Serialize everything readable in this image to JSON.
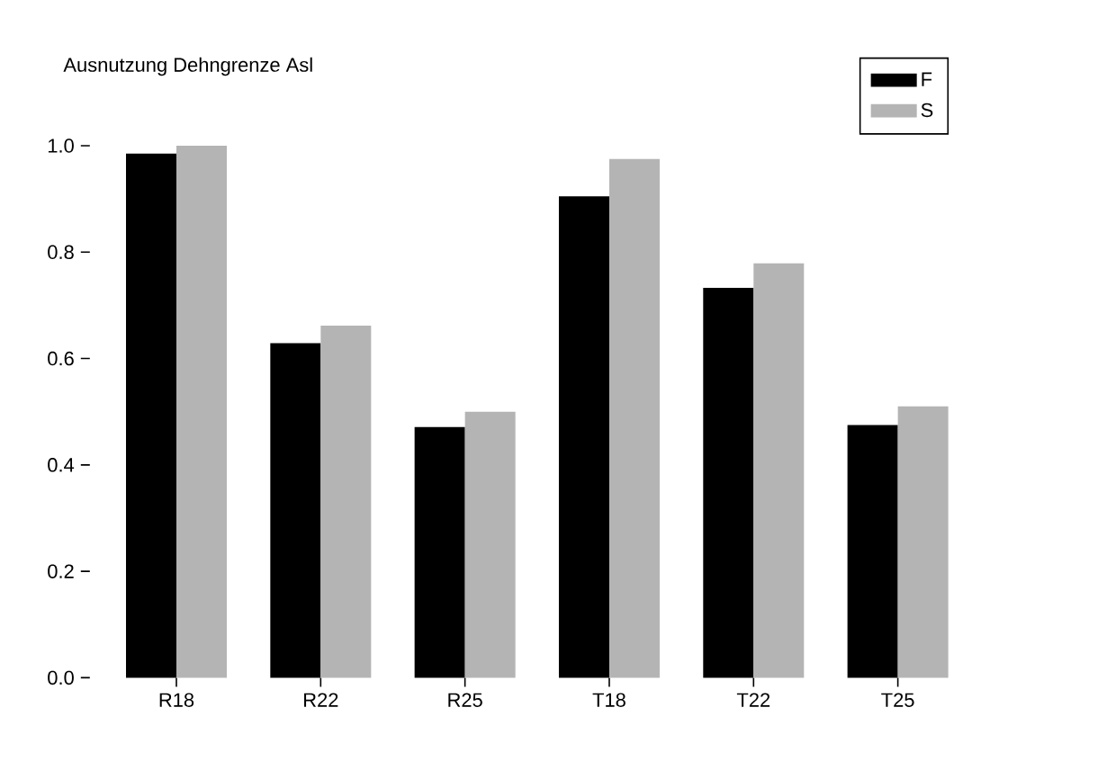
{
  "chart_data": {
    "type": "bar",
    "title": "Ausnutzung Dehngrenze Asl",
    "categories": [
      "R18",
      "R22",
      "R25",
      "T18",
      "T22",
      "T25"
    ],
    "series": [
      {
        "name": "F",
        "color": "#000000",
        "values": [
          0.985,
          0.629,
          0.471,
          0.905,
          0.733,
          0.475
        ]
      },
      {
        "name": "S",
        "color": "#b4b4b4",
        "values": [
          1.0,
          0.662,
          0.5,
          0.975,
          0.779,
          0.51
        ]
      }
    ],
    "ylim": [
      0,
      1.0
    ],
    "yticks": [
      {
        "value": 0.0,
        "label": "0.0"
      },
      {
        "value": 0.2,
        "label": "0.2"
      },
      {
        "value": 0.4,
        "label": "0.4"
      },
      {
        "value": 0.6,
        "label": "0.6"
      },
      {
        "value": 0.8,
        "label": "0.8"
      },
      {
        "value": 1.0,
        "label": "1.0"
      }
    ],
    "legend": "top right"
  }
}
